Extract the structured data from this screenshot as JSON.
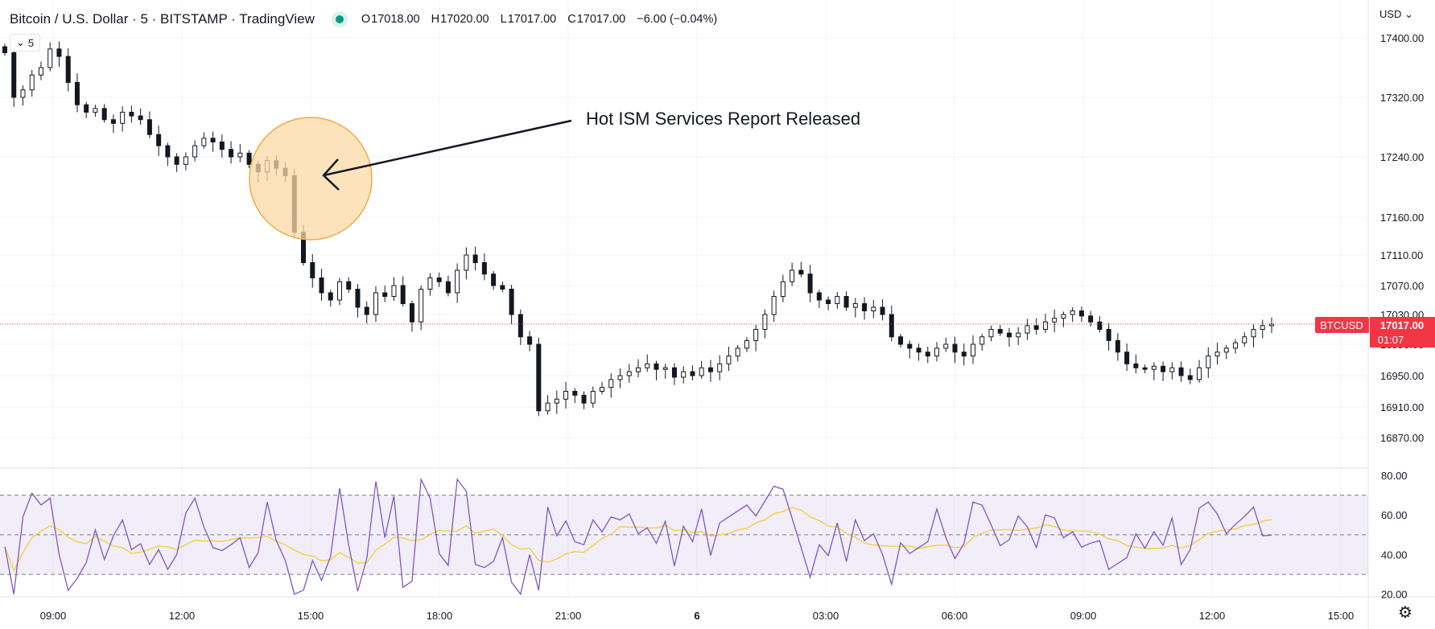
{
  "header": {
    "title": "Bitcoin / U.S. Dollar · 5 · BITSTAMP · TradingView",
    "ohlc": {
      "o_label": "O",
      "o": "17018.00",
      "h_label": "H",
      "h": "17020.00",
      "l_label": "L",
      "l": "17017.00",
      "c_label": "C",
      "c": "17017.00",
      "change": "−6.00 (−0.04%)"
    },
    "interval": "5",
    "currency": "USD"
  },
  "colors": {
    "up": "#089981",
    "down": "#f23645",
    "candle": "#131722",
    "rsi": "#7e57c2",
    "rsi_ma": "#f5d04b",
    "price_line": "#f23645",
    "annotation_fill": "#fbd9a6",
    "annotation_stroke": "#f2a947"
  },
  "annotation": {
    "text": "Hot ISM Services Report Released"
  },
  "chart_data": {
    "type": "candlestick",
    "symbol": "BTCUSD",
    "last_price": "17017.00",
    "countdown": "01:07",
    "price_ticks": [
      "17400.00",
      "17320.00",
      "17240.00",
      "17160.00",
      "17110.00",
      "17070.00",
      "17030.00",
      "16990.00",
      "16950.00",
      "16910.00",
      "16870.00"
    ],
    "time_ticks": [
      "09:00",
      "12:00",
      "15:00",
      "18:00",
      "21:00",
      "6",
      "03:00",
      "06:00",
      "09:00",
      "12:00",
      "15:00"
    ],
    "rsi_ticks": [
      "80.00",
      "60.00",
      "40.00",
      "20.00"
    ],
    "rsi_bands": [
      70,
      50,
      30
    ],
    "ylim_approx": [
      16850,
      17420
    ],
    "close_series": [
      17380,
      17320,
      17330,
      17350,
      17360,
      17385,
      17375,
      17340,
      17310,
      17300,
      17305,
      17290,
      17285,
      17300,
      17295,
      17290,
      17270,
      17255,
      17240,
      17230,
      17240,
      17255,
      17265,
      17260,
      17250,
      17240,
      17245,
      17230,
      17220,
      17235,
      17225,
      17215,
      17140,
      17100,
      17080,
      17060,
      17050,
      17075,
      17065,
      17040,
      17030,
      17060,
      17055,
      17070,
      17045,
      17020,
      17065,
      17080,
      17075,
      17060,
      17090,
      17110,
      17100,
      17085,
      17070,
      17065,
      17030,
      17000,
      16990,
      16905,
      16915,
      16920,
      16930,
      16925,
      16915,
      16930,
      16935,
      16945,
      16950,
      16955,
      16960,
      16965,
      16958,
      16960,
      16948,
      16955,
      16950,
      16960,
      16955,
      16965,
      16975,
      16985,
      16995,
      17010,
      17030,
      17055,
      17075,
      17090,
      17085,
      17060,
      17050,
      17045,
      17055,
      17040,
      17045,
      17035,
      17040,
      17030,
      17000,
      16990,
      16985,
      16980,
      16975,
      16985,
      16990,
      16980,
      16975,
      16990,
      17000,
      17010,
      17005,
      17000,
      17005,
      17015,
      17010,
      17020,
      17025,
      17030,
      17035,
      17028,
      17020,
      17010,
      16995,
      16980,
      16965,
      16960,
      16958,
      16962,
      16955,
      16960,
      16950,
      16945,
      16960,
      16975,
      16980,
      16985,
      16992,
      17000,
      17010,
      17015,
      17017
    ]
  }
}
